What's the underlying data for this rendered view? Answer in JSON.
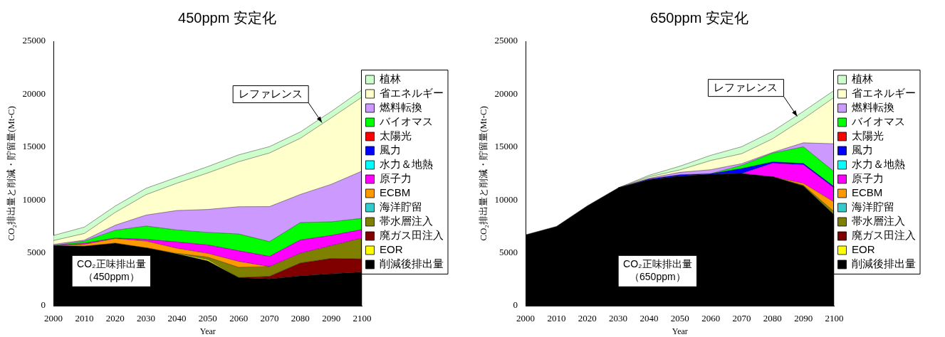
{
  "chart_data": [
    {
      "type": "area",
      "title": "450ppm 安定化",
      "xlabel": "Year",
      "ylabel": "CO₂排出量と削減・貯留量(Mt-C)",
      "stacked": true,
      "legend": "right",
      "grid": false,
      "x": [
        2000,
        2010,
        2020,
        2030,
        2040,
        2050,
        2060,
        2070,
        2080,
        2090,
        2100
      ],
      "xlim": [
        2000,
        2100
      ],
      "xticks": [
        2000,
        2010,
        2020,
        2030,
        2040,
        2050,
        2060,
        2070,
        2080,
        2090,
        2100
      ],
      "ylim": [
        0,
        25000
      ],
      "yticks": [
        0,
        5000,
        10000,
        15000,
        20000,
        25000
      ],
      "series": [
        {
          "name": "削減後排出量",
          "color": "#000000",
          "values": [
            5680,
            5630,
            5920,
            5480,
            4900,
            4230,
            2660,
            2540,
            2830,
            3020,
            3190
          ]
        },
        {
          "name": "EOR",
          "color": "#ffff00",
          "values": [
            null,
            null,
            null,
            0,
            50,
            120,
            0,
            null,
            null,
            null,
            null
          ]
        },
        {
          "name": "廃ガス田注入",
          "color": "#800000",
          "values": [
            null,
            null,
            null,
            null,
            null,
            null,
            0,
            240,
            1210,
            1450,
            1230
          ]
        },
        {
          "name": "帯水層注入",
          "color": "#808000",
          "values": [
            null,
            null,
            null,
            null,
            0,
            240,
            970,
            920,
            920,
            1210,
            1980
          ]
        },
        {
          "name": "海洋貯留",
          "color": "#33cccc",
          "values": [
            null,
            null,
            null,
            null,
            null,
            null,
            null,
            null,
            null,
            null,
            null
          ]
        },
        {
          "name": "ECBM",
          "color": "#ff9900",
          "values": [
            0,
            170,
            430,
            630,
            480,
            360,
            560,
            0,
            null,
            null,
            null
          ]
        },
        {
          "name": "原子力",
          "color": "#ff00ff",
          "values": [
            0,
            120,
            50,
            170,
            600,
            800,
            1010,
            970,
            1260,
            970,
            800
          ]
        },
        {
          "name": "水力＆地熱",
          "color": "#00ffff",
          "values": [
            null,
            null,
            null,
            null,
            null,
            null,
            null,
            null,
            null,
            null,
            null
          ]
        },
        {
          "name": "風力",
          "color": "#0000ff",
          "values": [
            null,
            null,
            null,
            null,
            null,
            null,
            null,
            null,
            null,
            null,
            null
          ]
        },
        {
          "name": "太陽光",
          "color": "#ff0000",
          "values": [
            null,
            null,
            null,
            null,
            null,
            null,
            null,
            null,
            null,
            null,
            null
          ]
        },
        {
          "name": "バイオマス",
          "color": "#00ff00",
          "values": [
            0,
            180,
            730,
            1250,
            1130,
            1180,
            1580,
            1390,
            1640,
            1280,
            1060
          ]
        },
        {
          "name": "燃料転換",
          "color": "#cc99ff",
          "values": [
            120,
            100,
            480,
            1040,
            1840,
            2170,
            2580,
            3310,
            2660,
            3550,
            4470
          ]
        },
        {
          "name": "省エネルギー",
          "color": "#ffffcc",
          "values": [
            360,
            630,
            1210,
            1930,
            2580,
            3450,
            4250,
            5070,
            5310,
            6280,
            7000
          ]
        },
        {
          "name": "植林",
          "color": "#ccffcc",
          "values": [
            480,
            600,
            600,
            600,
            560,
            600,
            650,
            600,
            600,
            600,
            680
          ]
        }
      ],
      "annotations": [
        {
          "text": "レファレンス",
          "x": 2087,
          "y": 17300
        },
        "CO₂正味排出量",
        "（450ppm）"
      ]
    },
    {
      "type": "area",
      "title": "650ppm 安定化",
      "xlabel": "Year",
      "ylabel": "CO₂排出量と削減・貯留量(Mt-C)",
      "stacked": true,
      "legend": "right",
      "grid": false,
      "x": [
        2000,
        2010,
        2020,
        2030,
        2040,
        2050,
        2060,
        2070,
        2080,
        2090,
        2100
      ],
      "xlim": [
        2000,
        2100
      ],
      "xticks": [
        2000,
        2010,
        2020,
        2030,
        2040,
        2050,
        2060,
        2070,
        2080,
        2090,
        2100
      ],
      "ylim": [
        0,
        25000
      ],
      "yticks": [
        0,
        5000,
        10000,
        15000,
        20000,
        25000
      ],
      "series": [
        {
          "name": "削減後排出量",
          "color": "#000000",
          "values": [
            6710,
            7500,
            9450,
            11140,
            11910,
            12260,
            12430,
            12500,
            12190,
            11330,
            8580
          ]
        },
        {
          "name": "EOR",
          "color": "#ffff00",
          "values": [
            null,
            null,
            null,
            null,
            null,
            null,
            null,
            null,
            null,
            null,
            null
          ]
        },
        {
          "name": "廃ガス田注入",
          "color": "#800000",
          "values": [
            null,
            null,
            null,
            null,
            null,
            null,
            null,
            null,
            null,
            null,
            null
          ]
        },
        {
          "name": "帯水層注入",
          "color": "#808000",
          "values": [
            null,
            null,
            null,
            null,
            null,
            null,
            null,
            null,
            0,
            50,
            300
          ]
        },
        {
          "name": "海洋貯留",
          "color": "#33cccc",
          "values": [
            null,
            null,
            null,
            null,
            null,
            null,
            null,
            null,
            null,
            null,
            null
          ]
        },
        {
          "name": "ECBM",
          "color": "#ff9900",
          "values": [
            null,
            null,
            null,
            null,
            null,
            null,
            null,
            null,
            0,
            190,
            910
          ]
        },
        {
          "name": "原子力",
          "color": "#ff00ff",
          "values": [
            null,
            null,
            null,
            null,
            null,
            null,
            null,
            0,
            1290,
            1760,
            1340
          ]
        },
        {
          "name": "水力＆地熱",
          "color": "#00ffff",
          "values": [
            null,
            null,
            null,
            null,
            null,
            null,
            null,
            null,
            null,
            null,
            null
          ]
        },
        {
          "name": "風力",
          "color": "#0000ff",
          "values": [
            null,
            null,
            null,
            0,
            70,
            120,
            50,
            470,
            120,
            120,
            120
          ]
        },
        {
          "name": "太陽光",
          "color": "#ff0000",
          "values": [
            null,
            null,
            null,
            null,
            null,
            null,
            null,
            null,
            null,
            null,
            null
          ]
        },
        {
          "name": "バイオマス",
          "color": "#00ff00",
          "values": [
            null,
            null,
            null,
            null,
            null,
            null,
            0,
            300,
            820,
            1570,
            1410
          ]
        },
        {
          "name": "燃料転換",
          "color": "#cc99ff",
          "values": [
            null,
            null,
            null,
            0,
            70,
            230,
            380,
            160,
            70,
            380,
            2650
          ]
        },
        {
          "name": "省エネルギー",
          "color": "#ffffcc",
          "values": [
            null,
            null,
            null,
            0,
            140,
            230,
            870,
            940,
            1290,
            2270,
            4390
          ]
        },
        {
          "name": "植林",
          "color": "#ccffcc",
          "values": [
            null,
            null,
            null,
            0,
            140,
            350,
            490,
            660,
            700,
            700,
            660
          ]
        }
      ],
      "annotations": [
        {
          "text": "レファレンス",
          "x": 2088,
          "y": 17900
        },
        "CO₂正味排出量",
        "（650ppm）"
      ]
    }
  ]
}
